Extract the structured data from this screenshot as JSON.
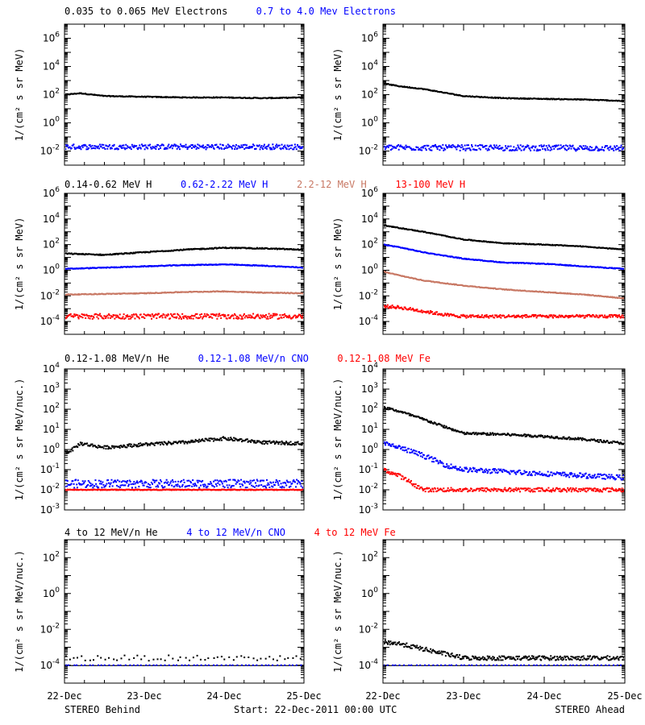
{
  "footer": {
    "left": "STEREO Behind",
    "center": "Start: 22-Dec-2011 00:00 UTC",
    "right": "STEREO Ahead"
  },
  "x_ticks": [
    "22-Dec",
    "23-Dec",
    "24-Dec",
    "25-Dec"
  ],
  "colors": {
    "black": "#000000",
    "blue": "#0000ff",
    "tan": "#c87864",
    "red": "#ff0000"
  },
  "chart_data": [
    {
      "type": "scatter",
      "row": 0,
      "side": "behind",
      "title_parts": [
        {
          "text": "0.035 to 0.065 MeV Electrons",
          "color": "#000000"
        },
        {
          "text": "0.7 to 4.0 Mev Electrons",
          "color": "#0000ff"
        }
      ],
      "ylabel": "1/(cm² s sr MeV)",
      "yscale": "log",
      "ylim_exp": [
        -3,
        7
      ],
      "yticks": [
        "10^-2",
        "10^0",
        "10^2",
        "10^4",
        "10^6"
      ],
      "x_days": [
        0,
        3
      ],
      "series": [
        {
          "color": "#000000",
          "x": [
            0,
            0.2,
            0.5,
            1,
            1.5,
            2,
            2.5,
            3
          ],
          "log10y": [
            2.0,
            2.1,
            1.9,
            1.85,
            1.8,
            1.8,
            1.75,
            1.8
          ],
          "noise": 0.03
        },
        {
          "color": "#0000ff",
          "x": [
            0,
            3
          ],
          "log10y": [
            -1.7,
            -1.7
          ],
          "noise": 0.18
        }
      ]
    },
    {
      "type": "scatter",
      "row": 0,
      "side": "ahead",
      "title_parts": [],
      "ylabel": "1/(cm² s sr MeV)",
      "yscale": "log",
      "ylim_exp": [
        -3,
        7
      ],
      "yticks": [
        "10^-2",
        "10^0",
        "10^2",
        "10^4",
        "10^6"
      ],
      "x_days": [
        0,
        3
      ],
      "series": [
        {
          "color": "#000000",
          "x": [
            0,
            0.2,
            0.5,
            0.8,
            1,
            1.5,
            2,
            2.5,
            3
          ],
          "log10y": [
            2.8,
            2.6,
            2.4,
            2.1,
            1.9,
            1.75,
            1.7,
            1.65,
            1.55
          ],
          "noise": 0.03
        },
        {
          "color": "#0000ff",
          "x": [
            0,
            3
          ],
          "log10y": [
            -1.75,
            -1.8
          ],
          "noise": 0.2
        }
      ]
    },
    {
      "type": "scatter",
      "row": 1,
      "side": "behind",
      "title_parts": [
        {
          "text": "0.14-0.62 MeV H",
          "color": "#000000"
        },
        {
          "text": "0.62-2.22 MeV H",
          "color": "#0000ff"
        },
        {
          "text": "2.2-12 MeV H",
          "color": "#c87864"
        },
        {
          "text": "13-100 MeV H",
          "color": "#ff0000"
        }
      ],
      "ylabel": "1/(cm² s sr MeV)",
      "yscale": "log",
      "ylim_exp": [
        -5,
        6
      ],
      "yticks": [
        "10^-4",
        "10^-2",
        "10^0",
        "10^2",
        "10^4",
        "10^6"
      ],
      "x_days": [
        0,
        3
      ],
      "series": [
        {
          "color": "#000000",
          "x": [
            0,
            0.5,
            1,
            1.5,
            2,
            2.5,
            3
          ],
          "log10y": [
            1.3,
            1.2,
            1.4,
            1.6,
            1.75,
            1.7,
            1.6
          ],
          "noise": 0.04
        },
        {
          "color": "#0000ff",
          "x": [
            0,
            0.5,
            1,
            1.5,
            2,
            2.5,
            3
          ],
          "log10y": [
            0.1,
            0.2,
            0.3,
            0.4,
            0.45,
            0.35,
            0.2
          ],
          "noise": 0.03
        },
        {
          "color": "#c87864",
          "x": [
            0,
            0.5,
            1,
            1.5,
            2,
            2.5,
            3
          ],
          "log10y": [
            -1.9,
            -1.85,
            -1.8,
            -1.7,
            -1.65,
            -1.75,
            -1.8
          ],
          "noise": 0.03
        },
        {
          "color": "#ff0000",
          "x": [
            0,
            3
          ],
          "log10y": [
            -3.6,
            -3.6
          ],
          "noise": 0.2
        }
      ]
    },
    {
      "type": "scatter",
      "row": 1,
      "side": "ahead",
      "title_parts": [],
      "ylabel": "1/(cm² s sr MeV)",
      "yscale": "log",
      "ylim_exp": [
        -5,
        6
      ],
      "yticks": [
        "10^-4",
        "10^-2",
        "10^0",
        "10^2",
        "10^4",
        "10^6"
      ],
      "x_days": [
        0,
        3
      ],
      "series": [
        {
          "color": "#000000",
          "x": [
            0,
            0.2,
            0.5,
            1,
            1.5,
            2,
            2.5,
            3
          ],
          "log10y": [
            3.5,
            3.3,
            3.0,
            2.4,
            2.1,
            2.0,
            1.85,
            1.6
          ],
          "noise": 0.03
        },
        {
          "color": "#0000ff",
          "x": [
            0,
            0.2,
            0.5,
            1,
            1.5,
            2,
            2.5,
            3
          ],
          "log10y": [
            2.0,
            1.8,
            1.4,
            0.9,
            0.6,
            0.5,
            0.3,
            0.1
          ],
          "noise": 0.03
        },
        {
          "color": "#c87864",
          "x": [
            0,
            0.2,
            0.5,
            1,
            1.5,
            2,
            2.5,
            3
          ],
          "log10y": [
            -0.1,
            -0.4,
            -0.8,
            -1.2,
            -1.5,
            -1.7,
            -1.9,
            -2.2
          ],
          "noise": 0.03
        },
        {
          "color": "#ff0000",
          "x": [
            0,
            0.2,
            0.5,
            0.8,
            1,
            3
          ],
          "log10y": [
            -2.8,
            -2.9,
            -3.2,
            -3.5,
            -3.6,
            -3.6
          ],
          "noise": 0.12
        }
      ]
    },
    {
      "type": "scatter",
      "row": 2,
      "side": "behind",
      "title_parts": [
        {
          "text": "0.12-1.08 MeV/n He",
          "color": "#000000"
        },
        {
          "text": "0.12-1.08 MeV/n CNO",
          "color": "#0000ff"
        },
        {
          "text": "0.12-1.08 MeV Fe",
          "color": "#ff0000"
        }
      ],
      "ylabel": "1/(cm² s sr MeV/nuc.)",
      "yscale": "log",
      "ylim_exp": [
        -3,
        4
      ],
      "yticks": [
        "10^-3",
        "10^-2",
        "10^-1",
        "10^0",
        "10^1",
        "10^2",
        "10^3",
        "10^4"
      ],
      "x_days": [
        0,
        3
      ],
      "series": [
        {
          "color": "#000000",
          "x": [
            0,
            0.1,
            0.2,
            0.5,
            1,
            1.5,
            2,
            2.5,
            3
          ],
          "log10y": [
            -0.2,
            0.0,
            0.3,
            0.1,
            0.25,
            0.35,
            0.55,
            0.35,
            0.3
          ],
          "noise": 0.08
        },
        {
          "color": "#0000ff",
          "x": [
            0,
            3
          ],
          "log10y": [
            -1.7,
            -1.7
          ],
          "noise": 0.2
        },
        {
          "color": "#ff0000",
          "x": [
            0,
            3
          ],
          "log10y": [
            -2.0,
            -2.0
          ],
          "noise": 0.02
        }
      ]
    },
    {
      "type": "scatter",
      "row": 2,
      "side": "ahead",
      "title_parts": [],
      "ylabel": "1/(cm² s sr MeV/nuc.)",
      "yscale": "log",
      "ylim_exp": [
        -3,
        4
      ],
      "yticks": [
        "10^-3",
        "10^-2",
        "10^-1",
        "10^0",
        "10^1",
        "10^2",
        "10^3",
        "10^4"
      ],
      "x_days": [
        0,
        3
      ],
      "series": [
        {
          "color": "#000000",
          "x": [
            0,
            0.2,
            0.5,
            1,
            1.5,
            2,
            2.5,
            3
          ],
          "log10y": [
            2.1,
            1.9,
            1.5,
            0.8,
            0.75,
            0.65,
            0.5,
            0.3
          ],
          "noise": 0.06
        },
        {
          "color": "#0000ff",
          "x": [
            0,
            0.2,
            0.5,
            0.8,
            1,
            1.5,
            2,
            2.5,
            3
          ],
          "log10y": [
            0.3,
            0.1,
            -0.3,
            -0.8,
            -1.0,
            -1.1,
            -1.2,
            -1.3,
            -1.4
          ],
          "noise": 0.12
        },
        {
          "color": "#ff0000",
          "x": [
            0,
            0.2,
            0.5,
            3
          ],
          "log10y": [
            -1.0,
            -1.3,
            -2.0,
            -2.0
          ],
          "noise": 0.1
        }
      ]
    },
    {
      "type": "scatter",
      "row": 3,
      "side": "behind",
      "title_parts": [
        {
          "text": "4 to 12 MeV/n He",
          "color": "#000000"
        },
        {
          "text": "4 to 12 MeV/n CNO",
          "color": "#0000ff"
        },
        {
          "text": "4 to 12 MeV Fe",
          "color": "#ff0000"
        }
      ],
      "ylabel": "1/(cm² s sr MeV/nuc.)",
      "yscale": "log",
      "ylim_exp": [
        -5,
        3
      ],
      "yticks": [
        "10^-4",
        "10^-2",
        "10^0",
        "10^2"
      ],
      "x_days": [
        0,
        3
      ],
      "series": [
        {
          "color": "#000000",
          "x": [
            0,
            3
          ],
          "log10y": [
            -4.0,
            -4.0
          ],
          "noise": 0.0
        },
        {
          "color": "#000000",
          "x": [
            0,
            3
          ],
          "log10y": [
            -3.6,
            -3.6
          ],
          "noise": 0.15,
          "sparse": true
        },
        {
          "color": "#0000ff",
          "x": [
            0,
            3
          ],
          "log10y": [
            -4.0,
            -4.0
          ],
          "noise": 0.0,
          "sparse": true
        }
      ]
    },
    {
      "type": "scatter",
      "row": 3,
      "side": "ahead",
      "title_parts": [],
      "ylabel": "1/(cm² s sr MeV/nuc.)",
      "yscale": "log",
      "ylim_exp": [
        -5,
        3
      ],
      "yticks": [
        "10^-4",
        "10^-2",
        "10^0",
        "10^2"
      ],
      "x_days": [
        0,
        3
      ],
      "series": [
        {
          "color": "#000000",
          "x": [
            0,
            3
          ],
          "log10y": [
            -4.0,
            -4.0
          ],
          "noise": 0.0
        },
        {
          "color": "#000000",
          "x": [
            0,
            0.2,
            0.5,
            0.8,
            1,
            3
          ],
          "log10y": [
            -2.7,
            -2.8,
            -3.1,
            -3.4,
            -3.6,
            -3.6
          ],
          "noise": 0.12
        },
        {
          "color": "#0000ff",
          "x": [
            0,
            1,
            2
          ],
          "log10y": [
            -4.0,
            -4.0,
            -4.0
          ],
          "noise": 0.0,
          "sparse": true
        }
      ]
    }
  ]
}
